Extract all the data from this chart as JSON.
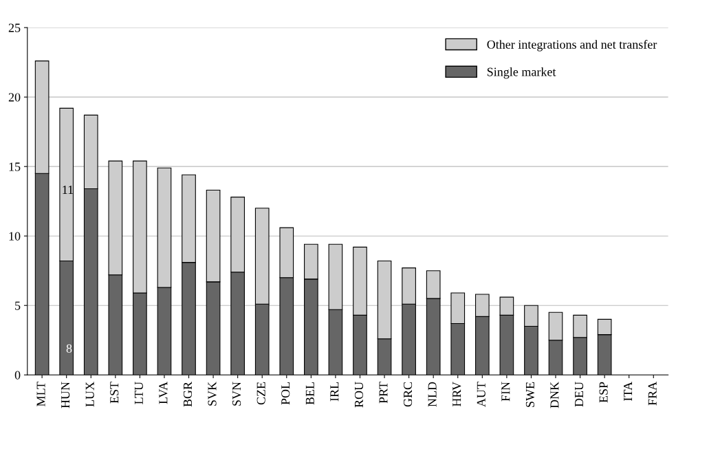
{
  "chart_data": {
    "type": "bar",
    "stacked": true,
    "categories": [
      "MLT",
      "HUN",
      "LUX",
      "EST",
      "LTU",
      "LVA",
      "BGR",
      "SVK",
      "SVN",
      "CZE",
      "POL",
      "BEL",
      "IRL",
      "ROU",
      "PRT",
      "GRC",
      "NLD",
      "HRV",
      "AUT",
      "FIN",
      "SWE",
      "DNK",
      "DEU",
      "ESP",
      "ITA",
      "FRA"
    ],
    "series": [
      {
        "name": "Single market",
        "color": "#666666",
        "values": [
          14.5,
          8.2,
          13.4,
          7.2,
          5.9,
          6.3,
          8.1,
          6.7,
          7.4,
          5.1,
          7.0,
          6.9,
          4.7,
          4.3,
          2.6,
          5.1,
          5.5,
          3.7,
          4.2,
          4.3,
          3.5,
          2.5,
          2.7,
          2.9,
          null,
          null
        ]
      },
      {
        "name": "Other integrations and net transfer",
        "color": "#cccccc",
        "values": [
          8.1,
          11.0,
          5.3,
          8.2,
          9.5,
          8.6,
          6.3,
          6.6,
          5.4,
          6.9,
          3.6,
          2.5,
          4.7,
          4.9,
          5.6,
          2.6,
          2.0,
          2.2,
          1.6,
          1.3,
          1.5,
          2.0,
          1.6,
          1.1,
          null,
          null
        ]
      }
    ],
    "ylim": [
      0,
      25
    ],
    "yticks": [
      0,
      5,
      10,
      15,
      20,
      25
    ],
    "grid": "y",
    "legend": "top right",
    "annotations": [
      "11",
      "8"
    ]
  }
}
